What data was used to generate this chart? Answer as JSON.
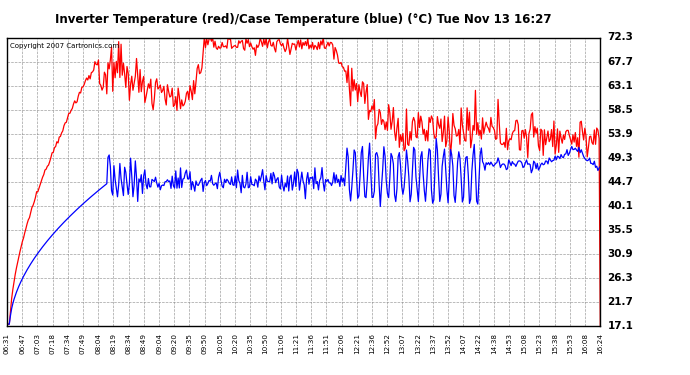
{
  "title": "Inverter Temperature (red)/Case Temperature (blue) (°C) Tue Nov 13 16:27",
  "copyright": "Copyright 2007 Cartronics.com",
  "yticks": [
    17.1,
    21.7,
    26.3,
    30.9,
    35.5,
    40.1,
    44.7,
    49.3,
    53.9,
    58.5,
    63.1,
    67.7,
    72.3
  ],
  "ylim": [
    17.1,
    72.3
  ],
  "bg_color": "#ffffff",
  "plot_bg": "#f0f0f0",
  "grid_color": "#aaaaaa",
  "xtick_labels": [
    "06:31",
    "06:47",
    "07:03",
    "07:18",
    "07:34",
    "07:49",
    "08:04",
    "08:19",
    "08:34",
    "08:49",
    "09:04",
    "09:20",
    "09:35",
    "09:50",
    "10:05",
    "10:20",
    "10:35",
    "10:50",
    "11:06",
    "11:21",
    "11:36",
    "11:51",
    "12:06",
    "12:21",
    "12:36",
    "12:52",
    "13:07",
    "13:22",
    "13:37",
    "13:52",
    "14:07",
    "14:22",
    "14:38",
    "14:53",
    "15:08",
    "15:23",
    "15:38",
    "15:53",
    "16:08",
    "16:24"
  ],
  "red_color": "#ff0000",
  "blue_color": "#0000ff",
  "n_points": 500
}
